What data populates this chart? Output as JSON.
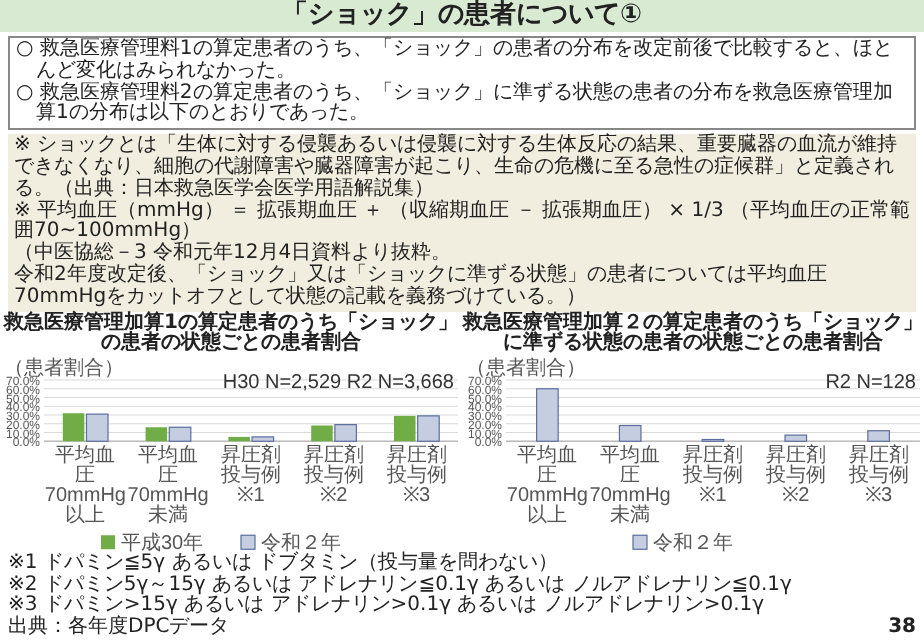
{
  "chart_data": [
    {
      "type": "other",
      "title": "「ショック」の患者について①",
      "annotations": [
        "○ 救急医療管理料1の算定患者のうち、「ショック」の患者の分布を改定前後で比較すると、ほとんど変化はみられなかった。",
        "○ 救急医療管理料2の算定患者のうち、「ショック」に準ずる状態の患者の分布を救急医療管理加算1の分布は以下のとおりであった。",
        "※ ショックとは「生体に対する侵襲あるいは侵襲に対する生体反応の結果、重要臓器の血流が維持できなくなり、細胞の代謝障害や臓器障害が起こり、生命の危機に至る急性の症候群」と定義される。（出典：日本救急医学会医学用語解説集）",
        "※ 平均血圧（mmHg） ＝ 拡張期血圧 ＋ （収縮期血圧 － 拡張期血圧） × 1/3 （平均血圧の正常範囲70~100mmHg）",
        "（中医協総－3 令和元年12月4日資料より抜粋。",
        "令和2年度改定後、「ショック」又は「ショックに準ずる状態」の患者については平均血圧70mmHgをカットオフとして状態の記載を義務づけている。）",
        "出典：各年度DPCデータ",
        "38"
      ]
    },
    {
      "type": "bar",
      "title": "救急医療管理加算1の算定患者のうち「ショック」の患者の状態ごとの患者割合",
      "ylabel": "（患者割合）",
      "categories": [
        "平均血圧70mmHg以上",
        "平均血圧70mmHg未満",
        "昇圧剤投与例※1",
        "昇圧剤投与例※2",
        "昇圧剤投与例※3"
      ],
      "series": [
        {
          "name": "平成30年",
          "color": "#70ad47",
          "values": [
            32,
            16,
            5,
            18,
            29
          ]
        },
        {
          "name": "令和２年",
          "color": "#c5cde0",
          "values": [
            31,
            16,
            5,
            19,
            29
          ]
        }
      ],
      "ylim": [
        0,
        70
      ],
      "yticks": [
        {
          "value": 0,
          "label": "0.0%"
        },
        {
          "value": 10,
          "label": "10.0%"
        },
        {
          "value": 20,
          "label": "20.0%"
        },
        {
          "value": 30,
          "label": "30.0%"
        },
        {
          "value": 40,
          "label": "40.0%"
        },
        {
          "value": 50,
          "label": "50.0%"
        },
        {
          "value": 60,
          "label": "60.0%"
        },
        {
          "value": 70,
          "label": "70.0%"
        }
      ],
      "grid": "y",
      "legend": "bottom",
      "annotations": [
        "H30 N=2,529 R2 N=3,668"
      ]
    },
    {
      "type": "bar",
      "title": "救急医療管理加算２の算定患者のうち「ショック」に準ずる状態の患者の状態ごとの患者割合",
      "ylabel": "（患者割合）",
      "categories": [
        "平均血圧70mmHg以上",
        "平均血圧70mmHg未満",
        "昇圧剤投与例※1",
        "昇圧剤投与例※2",
        "昇圧剤投与例※3"
      ],
      "series": [
        {
          "name": "令和２年",
          "color": "#c5cde0",
          "values": [
            60,
            18,
            2,
            7,
            12
          ]
        }
      ],
      "ylim": [
        0,
        70
      ],
      "yticks": [
        {
          "value": 0,
          "label": "0.0%"
        },
        {
          "value": 10,
          "label": "10.0%"
        },
        {
          "value": 20,
          "label": "20.0%"
        },
        {
          "value": 30,
          "label": "30.0%"
        },
        {
          "value": 40,
          "label": "40.0%"
        },
        {
          "value": 50,
          "label": "50.0%"
        },
        {
          "value": 60,
          "label": "60.0%"
        },
        {
          "value": 70,
          "label": "70.0%"
        }
      ],
      "grid": "y",
      "legend": "bottom",
      "annotations": [
        "R2 N=128",
        "※1 ドパミン≦5γ あるいは ドブタミン（投与量を問わない）",
        "※2 ドパミン5γ～15γ あるいは アドレナリン≦0.1γ あるいは ノルアドレナリン≦0.1γ",
        "※3 ドパミン>15γ あるいは アドレナリン>0.1γ あるいは ノルアドレナリン>0.1γ"
      ]
    }
  ]
}
